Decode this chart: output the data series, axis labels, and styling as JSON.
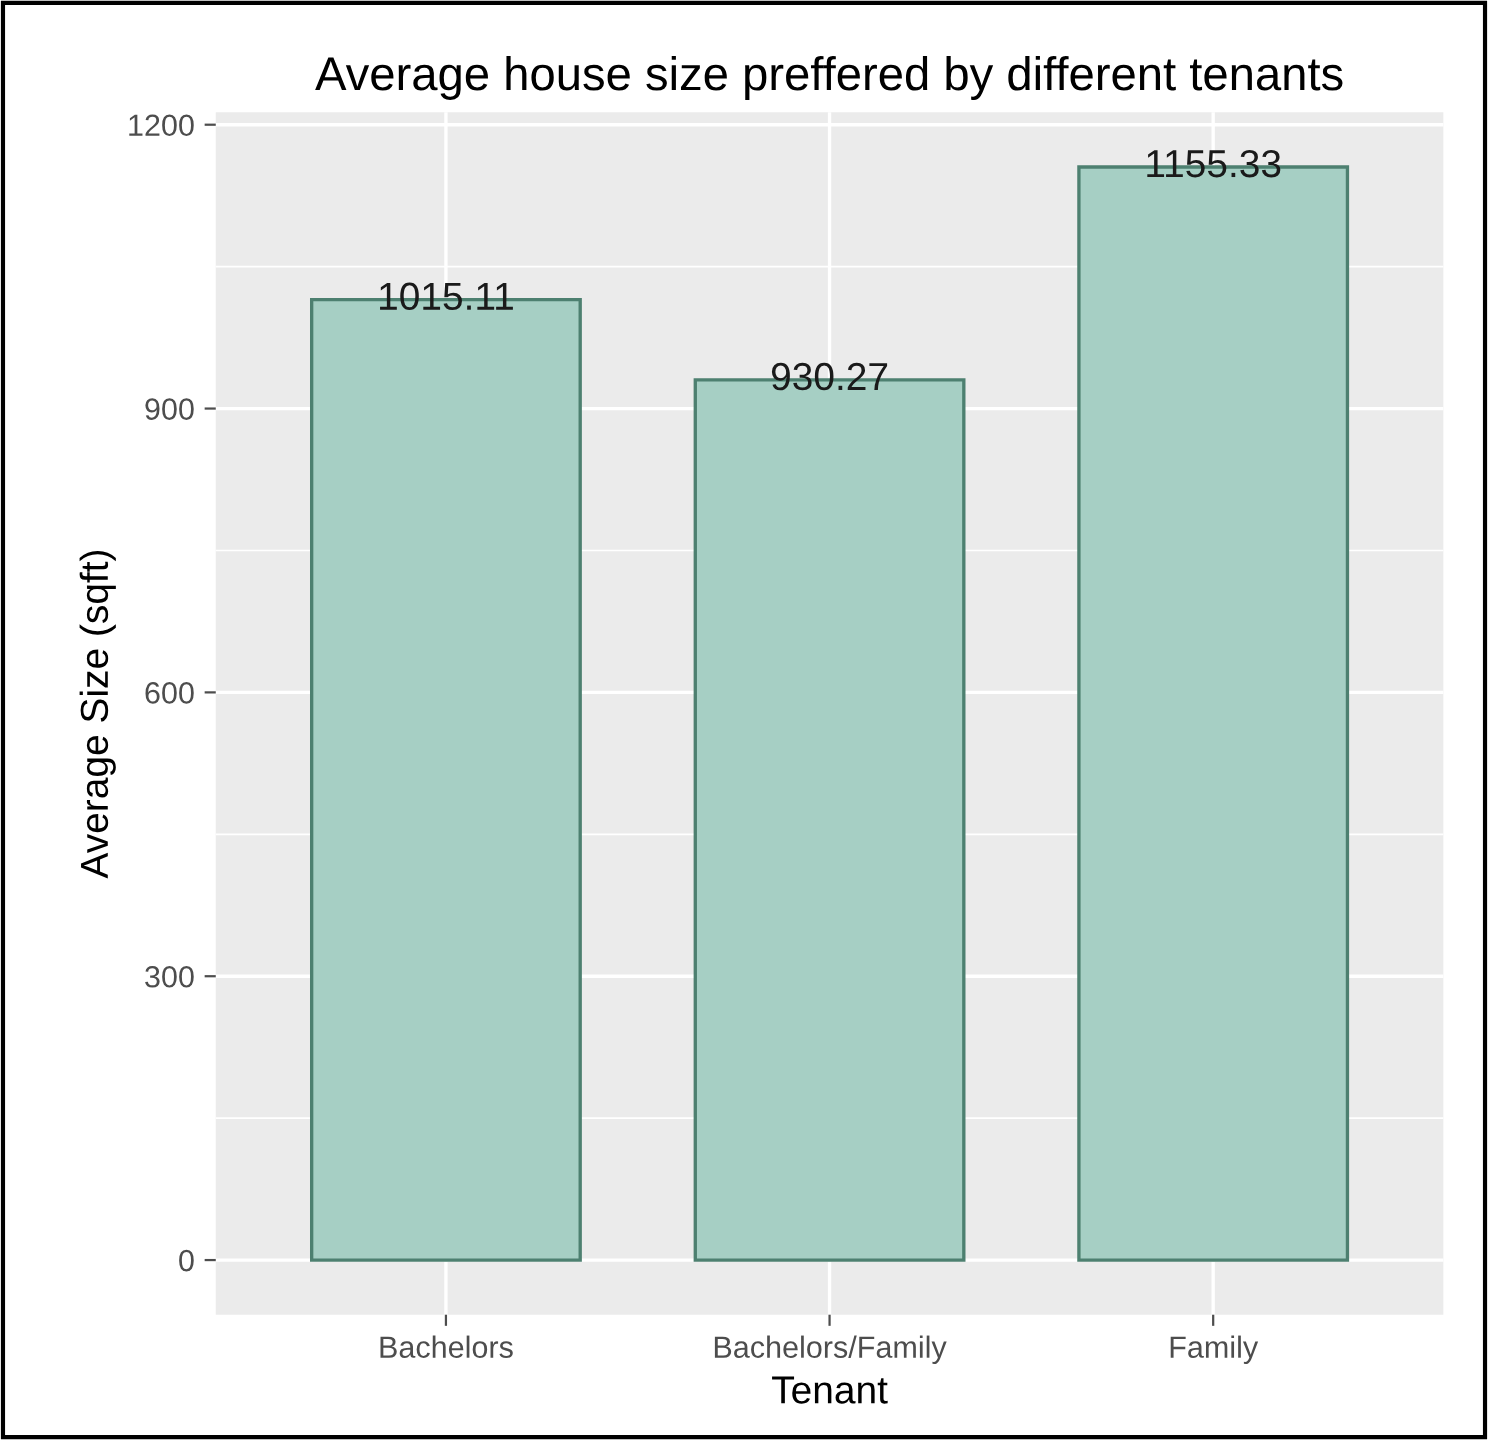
{
  "chart_data": {
    "type": "bar",
    "title": "Average house size preffered by different tenants",
    "xlabel": "Tenant",
    "ylabel": "Average Size (sqft)",
    "categories": [
      "Bachelors",
      "Bachelors/Family",
      "Family"
    ],
    "values": [
      1015.11,
      930.27,
      1155.33
    ],
    "color": "#a6cfc4",
    "ylim": [
      -57.77,
      1213.1
    ],
    "yticks": [
      0,
      300,
      600,
      900,
      1200
    ],
    "grid": true,
    "data_labels": true
  }
}
